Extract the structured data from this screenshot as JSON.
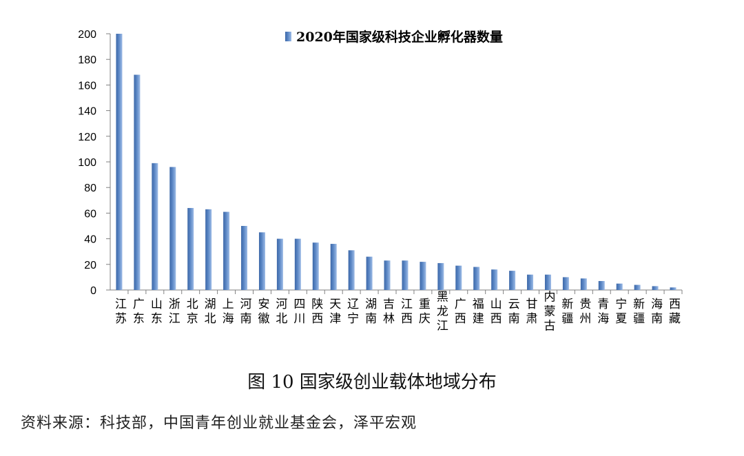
{
  "chart_data": {
    "type": "bar",
    "legend": "2020年国家级科技企业孵化器数量",
    "legend_position": "top-right",
    "categories": [
      "江苏",
      "广东",
      "山东",
      "浙江",
      "北京",
      "湖北",
      "上海",
      "河南",
      "安徽",
      "河北",
      "四川",
      "陕西",
      "天津",
      "辽宁",
      "湖南",
      "吉林",
      "江西",
      "重庆",
      "黑龙江",
      "广西",
      "福建",
      "山西",
      "云南",
      "甘肃",
      "内蒙古",
      "新疆",
      "贵州",
      "青海",
      "宁夏",
      "新疆",
      "海南",
      "西藏"
    ],
    "values": [
      200,
      168,
      99,
      96,
      64,
      63,
      61,
      50,
      45,
      40,
      40,
      37,
      36,
      31,
      26,
      23,
      23,
      22,
      21,
      19,
      18,
      16,
      15,
      12,
      12,
      10,
      9,
      7,
      5,
      4,
      3,
      2
    ],
    "ylim": [
      0,
      200
    ],
    "yticks": [
      0,
      20,
      40,
      60,
      80,
      100,
      120,
      140,
      160,
      180,
      200
    ],
    "grid": false,
    "bar_color": "#5b87c5"
  },
  "caption": "图 10  国家级创业载体地域分布",
  "source": "资料来源：科技部，中国青年创业就业基金会，泽平宏观"
}
